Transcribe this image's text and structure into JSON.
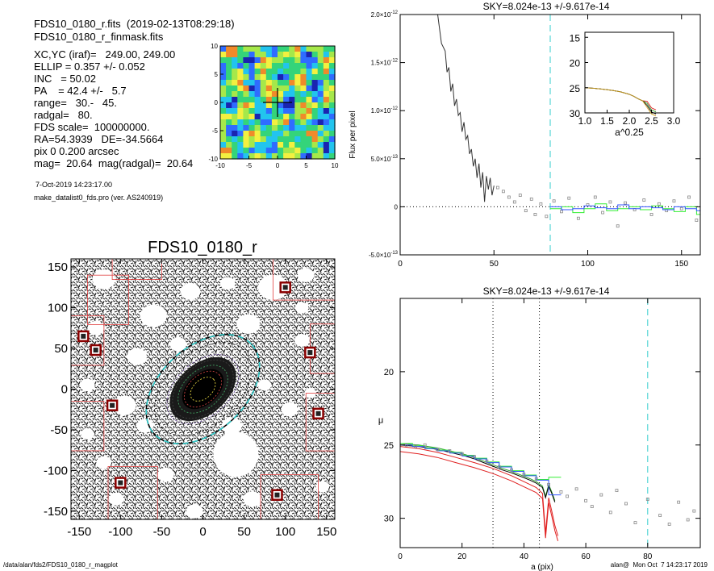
{
  "header": {
    "file": "FDS10_0180_r.fits  (2019-02-13T08:29:18)",
    "mask": "FDS10_0180_r_finmask.fits",
    "params": [
      "XC,YC (iraf)=   249.00, 249.00",
      "ELLIP = 0.357 +/- 0.052",
      "INC   = 50.02",
      "PA    = 42.4 +/-   5.7",
      "range=   30.-   45.",
      "radgal=   80.",
      "FDS scale=  100000000.",
      "RA=54.3939   DE=-34.5664",
      "pix 0 0.200 arcsec",
      "mag=  20.64  mag(radgal)=  20.64"
    ],
    "date": "7-Oct-2019 14:23:17.00",
    "program": "make_datalist0_fds.pro (ver. AS240919)"
  },
  "footer": {
    "path": "/data/alan/fds2/FDS10_0180_r_magplot",
    "user": "alan@  Mon Oct  7 14:23:17 2019"
  },
  "colors": {
    "profile": "#000000",
    "sky_line": "#33cccc",
    "range_line": "#000000",
    "bin_green": "#33ee33",
    "bin_blue": "#3355ff",
    "upper": "#e02020",
    "mask_box": "#e04040"
  },
  "chart_data": [
    {
      "id": "thumbnail",
      "type": "heatmap",
      "xlim": [
        -10,
        10
      ],
      "ylim": [
        -10,
        10
      ],
      "xticks": [
        -10,
        -5,
        0,
        5,
        10
      ],
      "yticks": [
        -10,
        -5,
        0,
        5,
        10
      ],
      "tick_labels": [
        "-10",
        "-5",
        "0",
        "5",
        "10"
      ],
      "colormap": [
        "#1a24b0",
        "#2f6cff",
        "#22c4ee",
        "#34d47a",
        "#a6e84a",
        "#f3f040",
        "#f08a2a",
        "#e02828"
      ]
    },
    {
      "id": "image",
      "type": "scatter",
      "title": "FDS10_0180_r",
      "xlim": [
        -160,
        160
      ],
      "ylim": [
        -160,
        160
      ],
      "xticks": [
        -150,
        -100,
        -50,
        0,
        50,
        100,
        150
      ],
      "yticks": [
        -150,
        -100,
        -50,
        0,
        50,
        100,
        150
      ],
      "xtick_labels": [
        "-150",
        "-100",
        "-50",
        "0",
        "50",
        "100",
        "150"
      ],
      "ytick_labels": [
        "-150",
        "-100",
        "-50",
        "0",
        "50",
        "100",
        "150"
      ],
      "ellipse_pa": 42.4,
      "ellipse_axis_ratio": 0.643
    },
    {
      "id": "flux_profile",
      "type": "line",
      "title": "SKY=8.024e-13 +/-9.617e-14",
      "ylabel": "Flux per pixel",
      "xlim": [
        0,
        160
      ],
      "ylim": [
        -5e-13,
        2e-12
      ],
      "xticks": [
        0,
        50,
        100,
        150
      ],
      "xtick_labels": [
        "0",
        "50",
        "100",
        "150"
      ],
      "yticks": [
        -5e-13,
        0,
        5e-13,
        1e-12,
        1.5e-12,
        2e-12
      ],
      "ytick_labels": [
        {
          "m": "-5.0×10",
          "e": "-13"
        },
        {
          "m": "0",
          "e": ""
        },
        {
          "m": "5.0×10",
          "e": "-13"
        },
        {
          "m": "1.0×10",
          "e": "-12"
        },
        {
          "m": "1.5×10",
          "e": "-12"
        },
        {
          "m": "2.0×10",
          "e": "-12"
        }
      ],
      "sky_radius": 80,
      "profile_x": [
        20,
        22,
        24,
        25,
        26,
        27,
        28,
        29,
        30,
        31,
        32,
        33,
        34,
        35,
        36,
        37,
        38,
        39,
        40,
        41,
        42,
        43,
        44,
        45,
        46,
        47,
        48,
        49,
        50
      ],
      "profile_y": [
        2e-12,
        1.7e-12,
        1.62e-12,
        1.4e-12,
        1.45e-12,
        1.2e-12,
        1.28e-12,
        1.05e-12,
        1.12e-12,
        9.5e-13,
        9.8e-13,
        7.8e-13,
        8.8e-13,
        7e-13,
        7.4e-13,
        5.5e-13,
        6e-13,
        4.2e-13,
        5e-13,
        3e-13,
        4.5e-13,
        2e-13,
        3.6e-13,
        5e-14,
        3.2e-13,
        1.8e-13,
        3e-13,
        1.2e-13,
        2.2e-13
      ],
      "points_x": [
        52,
        55,
        58,
        61,
        64,
        67,
        70,
        72,
        75,
        78,
        82,
        86,
        90,
        95,
        100,
        104,
        108,
        112,
        116,
        120,
        125,
        130,
        134,
        138,
        142,
        146,
        150,
        154,
        158
      ],
      "points_y": [
        2e-13,
        1.6e-13,
        1e-13,
        5e-14,
        1.2e-13,
        -4e-14,
        8e-14,
        -8e-14,
        3e-14,
        -1e-13,
        6e-14,
        -5e-14,
        9e-14,
        -1.2e-13,
        2e-14,
        1e-13,
        -6e-14,
        5e-14,
        -2e-13,
        4e-14,
        -3e-14,
        7e-14,
        -8e-14,
        3e-14,
        -4e-14,
        6e-14,
        -2e-14,
        1e-13,
        -1.4e-13
      ],
      "bins_x": [
        80,
        86,
        92,
        98,
        104,
        110,
        116,
        122,
        128,
        134,
        140,
        146,
        152,
        158,
        160
      ],
      "bins_green": [
        -2e-14,
        0.0,
        -6e-14,
        -2e-14,
        3e-14,
        -4e-14,
        -2e-14,
        0.0,
        -3e-14,
        1e-14,
        -2e-14,
        -5e-14,
        0.0,
        -8e-14
      ],
      "bins_blue": [
        0.0,
        -3e-14,
        -2e-14,
        1e-14,
        -1e-14,
        -2e-14,
        2e-14,
        -2e-14,
        0.0,
        -1e-14,
        -3e-14,
        0.0,
        -2e-14,
        -4e-14
      ],
      "inset": {
        "xlabel": "a^0.25",
        "xlim": [
          1.0,
          3.0
        ],
        "ylim": [
          30,
          14
        ],
        "xticks": [
          1.0,
          1.5,
          2.0,
          2.5,
          3.0
        ],
        "xtick_labels": [
          "1.0",
          "1.5",
          "2.0",
          "2.5",
          "3.0"
        ],
        "yticks": [
          15,
          20,
          25,
          30
        ],
        "ytick_labels": [
          "15",
          "20",
          "25",
          "30"
        ],
        "curve_x": [
          1.0,
          1.2,
          1.4,
          1.6,
          1.8,
          2.0,
          2.1,
          2.2,
          2.3,
          2.4,
          2.5,
          2.6
        ],
        "curve_y": [
          25.0,
          25.1,
          25.3,
          25.5,
          25.8,
          26.3,
          26.7,
          27.2,
          27.6,
          28.3,
          29.6,
          30.0
        ]
      }
    },
    {
      "id": "mu_profile",
      "type": "line",
      "title": "SKY=8.024e-13 +/-9.617e-14",
      "xlabel": "a (pix)",
      "ylabel": "μ",
      "xlim": [
        0,
        97
      ],
      "ylim": [
        32,
        15
      ],
      "xticks": [
        0,
        20,
        40,
        60,
        80
      ],
      "xtick_labels": [
        "0",
        "20",
        "40",
        "60",
        "80"
      ],
      "yticks": [
        20,
        25,
        30
      ],
      "ytick_labels": [
        "20",
        "25",
        "30"
      ],
      "range_lines": [
        30,
        45
      ],
      "sky_radius": 80,
      "profile_x": [
        0,
        3,
        6,
        9,
        12,
        15,
        18,
        21,
        24,
        27,
        30,
        33,
        36,
        39,
        42,
        44,
        46,
        47,
        48,
        49,
        50
      ],
      "profile_y": [
        25.0,
        25.05,
        25.1,
        25.2,
        25.3,
        25.45,
        25.6,
        25.75,
        25.95,
        26.2,
        26.45,
        26.7,
        26.9,
        27.15,
        27.4,
        27.6,
        27.9,
        28.6,
        27.8,
        28.3,
        28.9
      ],
      "upper_x": [
        0,
        6,
        12,
        18,
        24,
        30,
        36,
        40,
        44,
        46,
        47,
        48,
        49,
        50,
        51
      ],
      "upper_y": [
        25.1,
        25.25,
        25.5,
        25.85,
        26.2,
        26.6,
        27.1,
        27.5,
        27.9,
        28.3,
        31.0,
        28.6,
        29.5,
        30.5,
        31.2
      ],
      "points_x": [
        2,
        5,
        8,
        12,
        16,
        20,
        24,
        28,
        32,
        36,
        40,
        44,
        48,
        52,
        54,
        57,
        60,
        62,
        65,
        68,
        70,
        73,
        76,
        80,
        84,
        87,
        90,
        93,
        95
      ],
      "points_y": [
        25.0,
        25.1,
        25.0,
        25.3,
        25.4,
        25.6,
        25.8,
        26.1,
        26.5,
        26.7,
        27.0,
        27.3,
        27.7,
        28.2,
        28.5,
        28.0,
        28.8,
        29.2,
        28.4,
        29.6,
        28.1,
        29.0,
        30.3,
        28.7,
        29.8,
        30.4,
        28.9,
        30.1,
        29.5
      ],
      "bins_x": [
        0,
        4,
        8,
        12,
        16,
        20,
        24,
        28,
        32,
        36,
        40,
        44,
        48,
        52
      ],
      "bins_green": [
        24.9,
        25.05,
        25.2,
        25.35,
        25.5,
        25.7,
        25.9,
        26.15,
        26.45,
        26.75,
        27.05,
        27.35,
        27.2
      ],
      "bins_blue": [
        25.0,
        25.1,
        25.25,
        25.4,
        25.55,
        25.75,
        25.95,
        26.2,
        26.5,
        26.8,
        27.1,
        27.4,
        28.4
      ]
    }
  ]
}
